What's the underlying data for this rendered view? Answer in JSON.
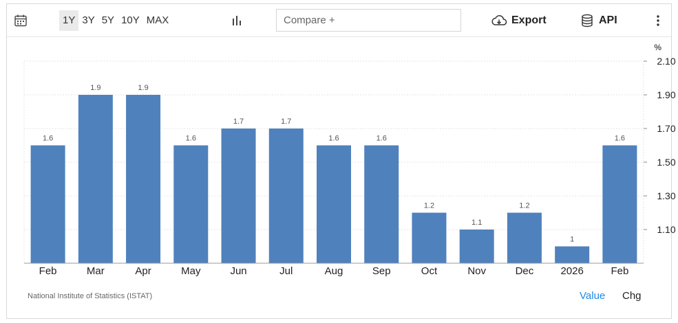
{
  "toolbar": {
    "ranges": [
      "1Y",
      "3Y",
      "5Y",
      "10Y",
      "MAX"
    ],
    "active_range": "1Y",
    "compare_placeholder": "Compare +",
    "export_label": "Export",
    "api_label": "API",
    "icons": [
      "calendar-icon",
      "bar-chart-icon",
      "cloud-download-icon",
      "database-icon",
      "more-vertical-icon"
    ]
  },
  "footer": {
    "source": "National Institute of Statistics (ISTAT)",
    "mode_value": "Value",
    "mode_chg": "Chg"
  },
  "colors": {
    "bar": "#4f81bd",
    "active_mode": "#1e88e5",
    "grid": "#e5e5e5"
  },
  "chart_data": {
    "type": "bar",
    "unit": "%",
    "categories": [
      "Feb",
      "Mar",
      "Apr",
      "May",
      "Jun",
      "Jul",
      "Aug",
      "Sep",
      "Oct",
      "Nov",
      "Dec",
      "2026",
      "Feb"
    ],
    "values": [
      1.6,
      1.9,
      1.9,
      1.6,
      1.7,
      1.7,
      1.6,
      1.6,
      1.2,
      1.1,
      1.2,
      1.0,
      1.6
    ],
    "value_labels": [
      "1.6",
      "1.9",
      "1.9",
      "1.6",
      "1.7",
      "1.7",
      "1.6",
      "1.6",
      "1.2",
      "1.1",
      "1.2",
      "1",
      "1.6"
    ],
    "y_ticks": [
      "2.10",
      "1.90",
      "1.70",
      "1.50",
      "1.30",
      "1.10"
    ],
    "ylim": [
      0.9,
      2.1
    ],
    "y_axis_position": "right",
    "grid": true
  }
}
